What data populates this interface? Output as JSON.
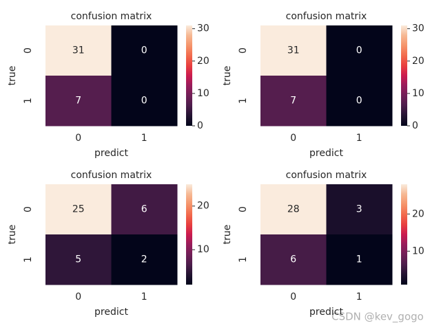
{
  "chart_data": [
    {
      "type": "heatmap",
      "title": "confusion matrix",
      "xlabel": "predict",
      "ylabel": "true",
      "x_categories": [
        "0",
        "1"
      ],
      "y_categories": [
        "0",
        "1"
      ],
      "values": [
        [
          31,
          0
        ],
        [
          7,
          0
        ]
      ],
      "clim": [
        0,
        31
      ],
      "cticks": [
        0,
        10,
        20,
        30
      ],
      "colormap": [
        "#03051a",
        "#221331",
        "#4c1d4b",
        "#701f57",
        "#971c5b",
        "#cb1b4f",
        "#e83f3f",
        "#f26b4d",
        "#f5946b",
        "#f6b893",
        "#faebdd"
      ]
    },
    {
      "type": "heatmap",
      "title": "confusion matrix",
      "xlabel": "predict",
      "ylabel": "true",
      "x_categories": [
        "0",
        "1"
      ],
      "y_categories": [
        "0",
        "1"
      ],
      "values": [
        [
          31,
          0
        ],
        [
          7,
          0
        ]
      ],
      "clim": [
        0,
        31
      ],
      "cticks": [
        0,
        10,
        20,
        30
      ],
      "colormap": [
        "#03051a",
        "#221331",
        "#4c1d4b",
        "#701f57",
        "#971c5b",
        "#cb1b4f",
        "#e83f3f",
        "#f26b4d",
        "#f5946b",
        "#f6b893",
        "#faebdd"
      ]
    },
    {
      "type": "heatmap",
      "title": "confusion matrix",
      "xlabel": "predict",
      "ylabel": "true",
      "x_categories": [
        "0",
        "1"
      ],
      "y_categories": [
        "0",
        "1"
      ],
      "values": [
        [
          25,
          6
        ],
        [
          5,
          2
        ]
      ],
      "clim": [
        2,
        25
      ],
      "cticks": [
        10,
        20
      ],
      "colormap": [
        "#03051a",
        "#221331",
        "#4c1d4b",
        "#701f57",
        "#971c5b",
        "#cb1b4f",
        "#e83f3f",
        "#f26b4d",
        "#f5946b",
        "#f6b893",
        "#faebdd"
      ]
    },
    {
      "type": "heatmap",
      "title": "confusion matrix",
      "xlabel": "predict",
      "ylabel": "true",
      "x_categories": [
        "0",
        "1"
      ],
      "y_categories": [
        "0",
        "1"
      ],
      "values": [
        [
          28,
          3
        ],
        [
          6,
          1
        ]
      ],
      "clim": [
        1,
        28
      ],
      "cticks": [
        10,
        20
      ],
      "colormap": [
        "#03051a",
        "#221331",
        "#4c1d4b",
        "#701f57",
        "#971c5b",
        "#cb1b4f",
        "#e83f3f",
        "#f26b4d",
        "#f5946b",
        "#f6b893",
        "#faebdd"
      ]
    }
  ],
  "watermark": "CSDN @kev_gogo"
}
